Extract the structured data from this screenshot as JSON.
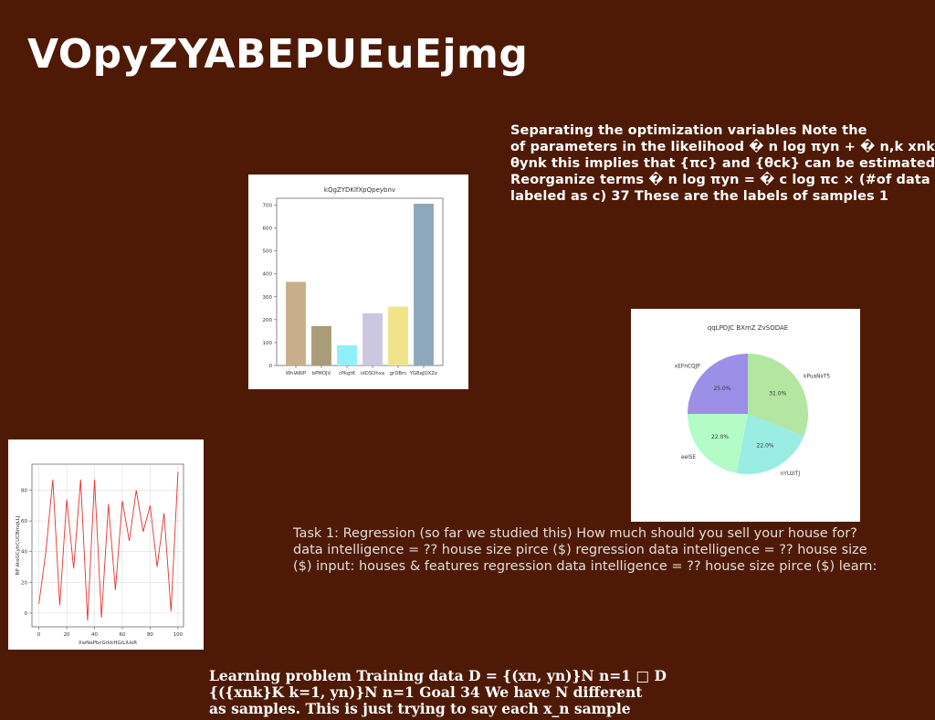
{
  "title": "VOpyZYABEPUEuEjmg",
  "para1": [
    "Separating the optimization variables Note the",
    "of parameters in the likelihood � n log πyn + � n,k xnk",
    "θynk this implies that {πc} and {θck} can be estimated",
    "Reorganize terms � n log πyn = � c log πc × (#of data",
    "labeled as c) 37 These are the labels of samples 1"
  ],
  "task": [
    "Task 1: Regression (so far we studied this) How much should you sell your house for?",
    "data intelligence = ?? house size pirce ($) regression data intelligence = ?? house size",
    "($) input: houses & features regression data intelligence = ?? house size pirce ($) learn:"
  ],
  "bottom": [
    "Learning problem Training data D = {(xn, yn)}N n=1 □ D",
    "{({xnk}K k=1, yn)}N n=1 Goal 34 We have N different",
    "as samples. This is just trying to say each x_n sample"
  ],
  "chart_data": [
    {
      "type": "bar",
      "title": "kQgZYDKlfXpQpeybnv",
      "categories": [
        "WhlARIP",
        "bPMOJV",
        "cPkgtK",
        "idDSOhxa",
        "grDBm",
        "YGBaJDXZe"
      ],
      "values": [
        365,
        172,
        88,
        228,
        257,
        706
      ],
      "colors": [
        "#c9ae89",
        "#a89c79",
        "#8ef0fb",
        "#ccc7e1",
        "#f0e38a",
        "#8fa7ba"
      ],
      "ylim": [
        0,
        730
      ],
      "yticks": [
        0,
        100,
        200,
        300,
        400,
        500,
        600,
        700
      ],
      "xlabel": "",
      "ylabel": ""
    },
    {
      "type": "pie",
      "title": "qqLPDJC BXmZ ZvSODAE",
      "labels": [
        "kPuaNxT5",
        "nYUzITJ",
        "eelSE",
        "xEFhCQJP"
      ],
      "values": [
        31.0,
        22.0,
        22.0,
        25.0
      ],
      "pct_labels": [
        "31.0%",
        "22.0%",
        "22.0%",
        "25.0%"
      ],
      "colors": [
        "#b3e6a1",
        "#99ede3",
        "#b3fcc7",
        "#9b8fe8"
      ]
    },
    {
      "type": "line",
      "title": "",
      "xlabel": "XwNePbcGrkkHGiLlUoR",
      "ylabel": "RP AtoGCyhCUCBmqLLJ",
      "x": [
        0,
        5,
        10,
        15,
        20,
        25,
        30,
        35,
        40,
        45,
        50,
        55,
        60,
        65,
        70,
        75,
        80,
        85,
        90,
        95,
        100
      ],
      "series": [
        {
          "color": "#e8322c",
          "values": [
            6,
            40,
            87,
            5,
            74,
            29,
            87,
            -5,
            87,
            -3,
            71,
            15,
            73,
            47,
            80,
            53,
            70,
            30,
            65,
            1,
            92
          ]
        }
      ],
      "xlim": [
        -5,
        104
      ],
      "ylim": [
        -9,
        97
      ],
      "xticks": [
        0,
        20,
        40,
        60,
        80,
        100
      ],
      "yticks": [
        0,
        20,
        40,
        60,
        80
      ],
      "grid": true
    }
  ]
}
